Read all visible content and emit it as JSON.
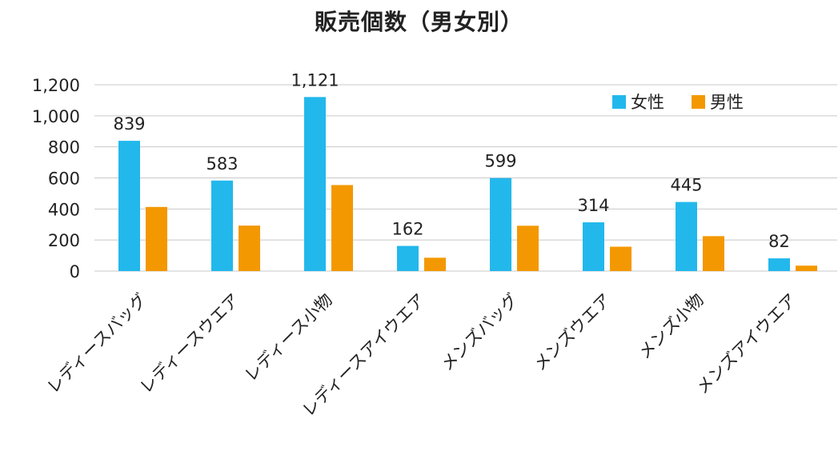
{
  "chart_data": {
    "type": "bar",
    "title": "販売個数（男女別）",
    "categories": [
      "レディースバッグ",
      "レディースウエア",
      "レディース小物",
      "レディースアイウエア",
      "メンズバッグ",
      "メンズウエア",
      "メンズ小物",
      "メンズアイウエア"
    ],
    "series": [
      {
        "name": "女性",
        "color": "#22b8ec",
        "values": [
          839,
          583,
          1121,
          162,
          599,
          314,
          445,
          82
        ]
      },
      {
        "name": "男性",
        "color": "#f39800",
        "values": [
          413,
          293,
          554,
          86,
          292,
          157,
          225,
          35
        ]
      }
    ],
    "data_labels": [
      "839",
      "583",
      "1,121",
      "162",
      "599",
      "314",
      "445",
      "82"
    ],
    "y_ticks": [
      "0",
      "200",
      "400",
      "600",
      "800",
      "1,000",
      "1,200"
    ],
    "ylim": [
      0,
      1200
    ],
    "grid": true,
    "legend_position": "top-right",
    "xlabel": "",
    "ylabel": ""
  }
}
